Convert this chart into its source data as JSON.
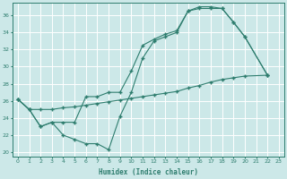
{
  "xlabel": "Humidex (Indice chaleur)",
  "xlim": [
    -0.5,
    23.5
  ],
  "ylim": [
    19.5,
    37.5
  ],
  "yticks": [
    20,
    22,
    24,
    26,
    28,
    30,
    32,
    34,
    36
  ],
  "xticks": [
    0,
    1,
    2,
    3,
    4,
    5,
    6,
    7,
    8,
    9,
    10,
    11,
    12,
    13,
    14,
    15,
    16,
    17,
    18,
    19,
    20,
    21,
    22,
    23
  ],
  "bg_color": "#cce8e8",
  "grid_color": "#ffffff",
  "line_color": "#2e7d6e",
  "line1_x": [
    0,
    1,
    2,
    3,
    4,
    5,
    6,
    7,
    8,
    9,
    10,
    11,
    12,
    13,
    14,
    15,
    16,
    17,
    18,
    19,
    20,
    22
  ],
  "line1_y": [
    26.2,
    25.0,
    23.0,
    23.5,
    22.0,
    21.5,
    21.0,
    21.0,
    20.3,
    24.2,
    27.0,
    31.0,
    33.0,
    33.5,
    34.0,
    36.5,
    37.0,
    37.0,
    36.8,
    35.2,
    33.5,
    29.0
  ],
  "line2_x": [
    0,
    1,
    2,
    3,
    4,
    5,
    6,
    7,
    8,
    9,
    10,
    11,
    12,
    13,
    14,
    15,
    16,
    17,
    18,
    19,
    20,
    22
  ],
  "line2_y": [
    26.2,
    25.0,
    23.0,
    23.5,
    23.5,
    23.5,
    26.5,
    26.5,
    27.0,
    27.0,
    29.5,
    32.5,
    33.2,
    33.8,
    34.2,
    36.5,
    36.8,
    36.8,
    36.8,
    35.2,
    33.5,
    29.0
  ],
  "line3_x": [
    0,
    1,
    2,
    3,
    4,
    5,
    6,
    7,
    8,
    9,
    10,
    11,
    12,
    13,
    14,
    15,
    16,
    17,
    18,
    19,
    20,
    22
  ],
  "line3_y": [
    26.2,
    25.0,
    25.0,
    25.0,
    25.2,
    25.3,
    25.5,
    25.7,
    25.9,
    26.1,
    26.3,
    26.5,
    26.7,
    26.9,
    27.1,
    27.5,
    27.8,
    28.2,
    28.5,
    28.7,
    28.9,
    29.0
  ]
}
